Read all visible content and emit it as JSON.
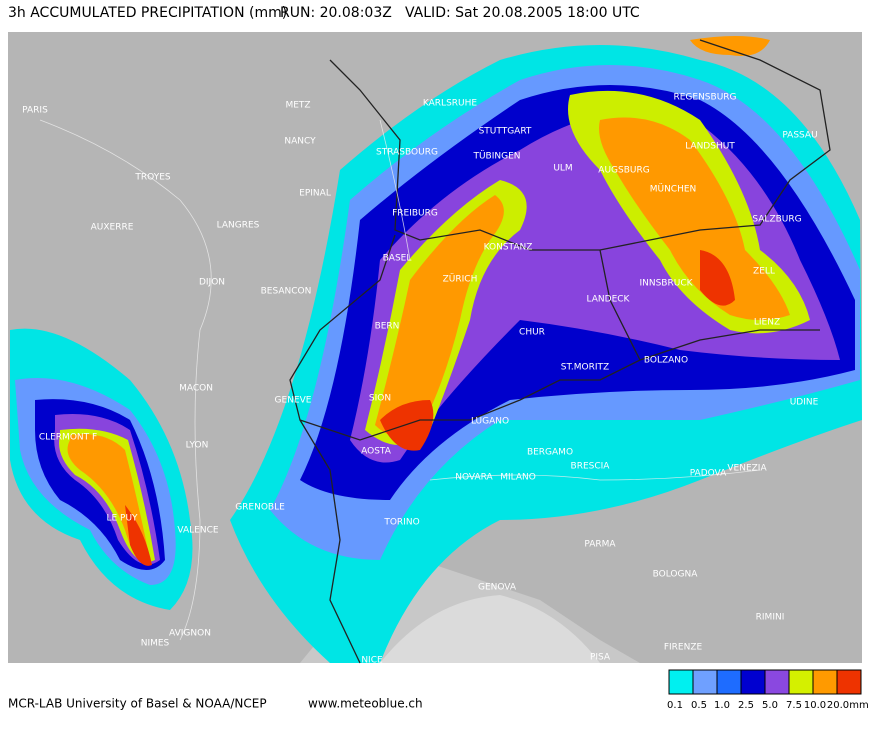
{
  "header": {
    "title": "3h ACCUMULATED PRECIPITATION (mm)",
    "run": "RUN: 20.08:03Z",
    "valid": "VALID:  Sat 20.08.2005  18:00 UTC"
  },
  "map": {
    "cities": [
      "PARIS",
      "METZ",
      "KARLSRUHE",
      "STUTTGART",
      "REGENSBURG",
      "PASSAU",
      "LANDSHUT",
      "NANCY",
      "STRASBOURG",
      "TÜBINGEN",
      "ULM",
      "AUGSBURG",
      "TROYES",
      "MÜNCHEN",
      "EPINAL",
      "FREIBURG",
      "SALZBURG",
      "AUXERRE",
      "LANGRES",
      "KONSTANZ",
      "BASEL",
      "ZELL",
      "ZÜRICH",
      "INNSBRUCK",
      "DIJON",
      "BESANCON",
      "LANDECK",
      "LIENZ",
      "BERN",
      "CHUR",
      "BOLZANO",
      "ST.MORITZ",
      "MACON",
      "SION",
      "GENEVE",
      "UDINE",
      "CLERMONT F",
      "LYON",
      "LUGANO",
      "AOSTA",
      "BERGAMO",
      "BRESCIA",
      "PADOVA",
      "VENEZIA",
      "NOVARA",
      "MILANO",
      "GRENOBLE",
      "LE PUY",
      "VALENCE",
      "TORINO",
      "PARMA",
      "BOLOGNA",
      "GENOVA",
      "AVIGNON",
      "NIMES",
      "RIMINI",
      "NICE",
      "PISA",
      "FIRENZE"
    ]
  },
  "footer": {
    "credit": "MCR-LAB University of Basel  &  NOAA/NCEP",
    "url": "www.meteoblue.ch"
  },
  "legend": {
    "labels": [
      "0.1",
      "0.5",
      "1.0",
      "2.5",
      "5.0",
      "7.5",
      "10.0",
      "20.0"
    ],
    "unit": "mm"
  }
}
